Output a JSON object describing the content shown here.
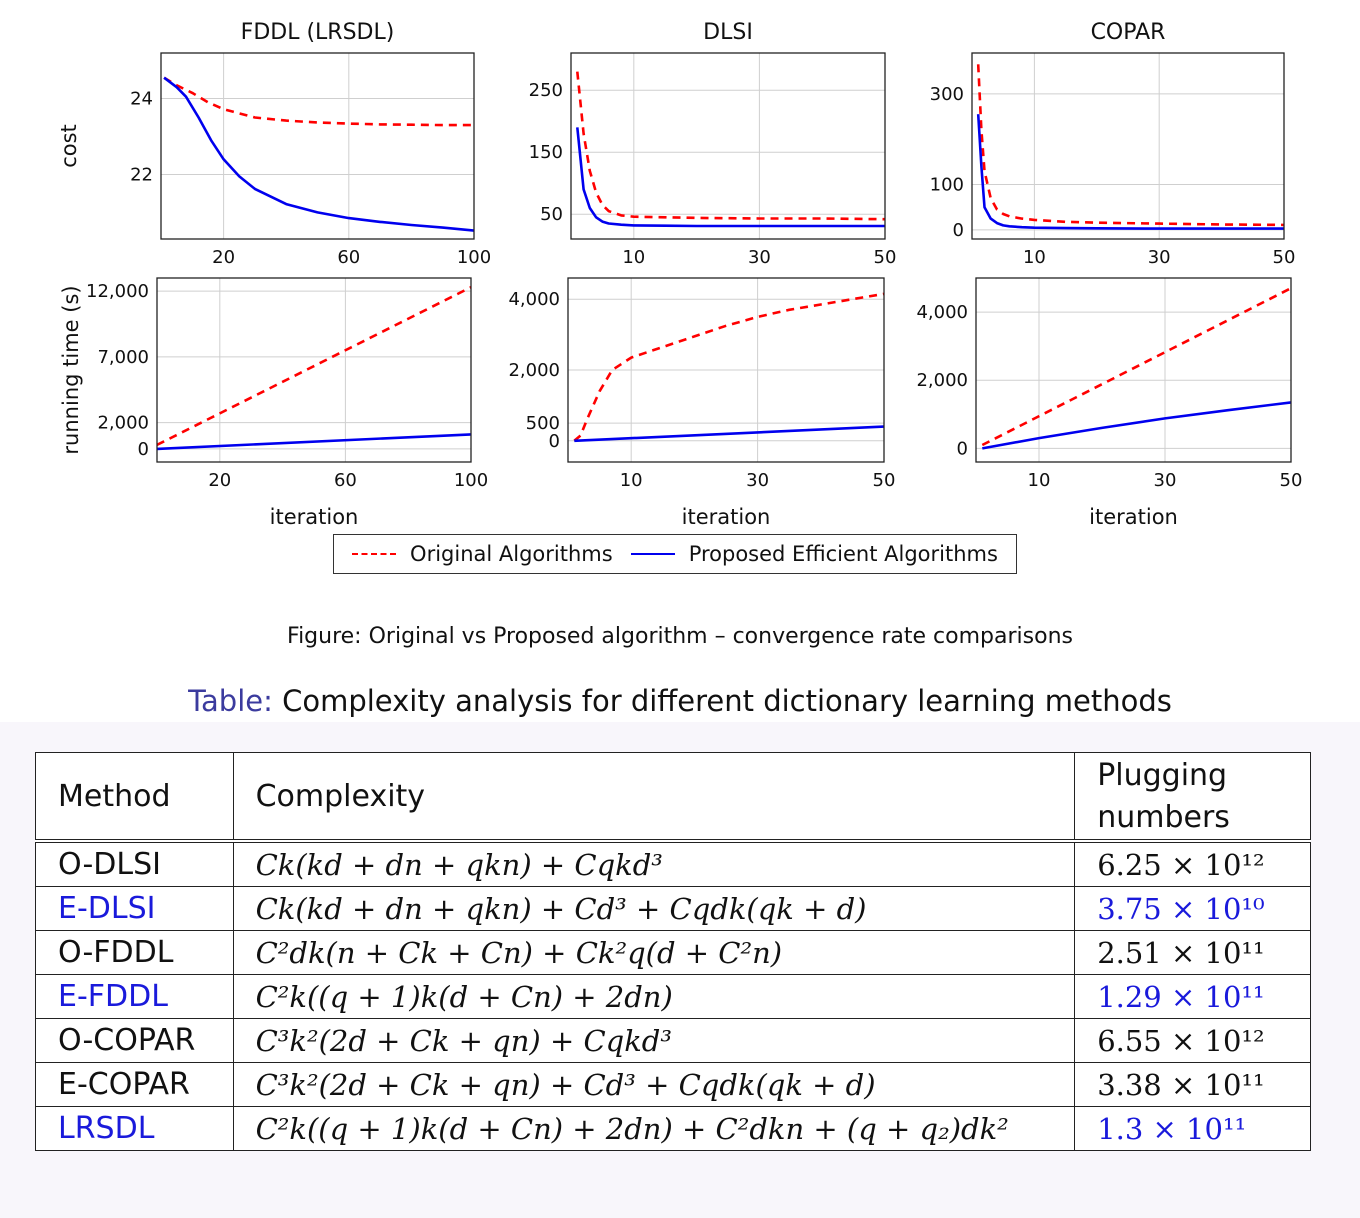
{
  "figure": {
    "legend": {
      "original": "Original Algorithms",
      "proposed": "Proposed Efficient Algorithms"
    },
    "caption": "Figure: Original vs Proposed algorithm – convergence rate comparisons",
    "colors": {
      "original": "#ff0000",
      "proposed": "#0000ee"
    }
  },
  "chart_data": [
    {
      "type": "line",
      "title": "FDDL (LRSDL)",
      "xlabel": "",
      "ylabel": "cost",
      "xlim": [
        0,
        100
      ],
      "ylim": [
        20.3,
        25.2
      ],
      "xticks": [
        20,
        60,
        100
      ],
      "xtick_labels": [
        "20",
        "60",
        "100"
      ],
      "yticks": [
        22,
        24
      ],
      "ytick_labels": [
        "22",
        "24"
      ],
      "grid": true,
      "series": [
        {
          "name": "Original Algorithms",
          "style": "dashed",
          "x": [
            1,
            5,
            10,
            15,
            20,
            30,
            40,
            50,
            60,
            70,
            80,
            90,
            100
          ],
          "y": [
            24.55,
            24.35,
            24.15,
            23.9,
            23.72,
            23.5,
            23.42,
            23.37,
            23.34,
            23.32,
            23.31,
            23.3,
            23.3
          ]
        },
        {
          "name": "Proposed Efficient Algorithms",
          "style": "solid",
          "x": [
            1,
            5,
            8,
            12,
            16,
            20,
            25,
            30,
            40,
            50,
            60,
            70,
            80,
            90,
            100
          ],
          "y": [
            24.55,
            24.3,
            24.05,
            23.5,
            22.9,
            22.4,
            21.95,
            21.62,
            21.22,
            21.0,
            20.85,
            20.75,
            20.67,
            20.6,
            20.52
          ]
        }
      ]
    },
    {
      "type": "line",
      "title": "DLSI",
      "xlabel": "",
      "ylabel": "",
      "xlim": [
        0,
        50
      ],
      "ylim": [
        10,
        310
      ],
      "xticks": [
        10,
        30,
        50
      ],
      "xtick_labels": [
        "10",
        "30",
        "50"
      ],
      "yticks": [
        50,
        150,
        250
      ],
      "ytick_labels": [
        "50",
        "150",
        "250"
      ],
      "grid": true,
      "series": [
        {
          "name": "Original Algorithms",
          "style": "dashed",
          "x": [
            1,
            2,
            3,
            4,
            5,
            6,
            8,
            10,
            15,
            20,
            30,
            40,
            50
          ],
          "y": [
            280,
            180,
            120,
            85,
            65,
            55,
            48,
            46,
            45,
            44,
            43,
            43,
            42
          ]
        },
        {
          "name": "Proposed Efficient Algorithms",
          "style": "solid",
          "x": [
            1,
            2,
            3,
            4,
            5,
            6,
            8,
            10,
            15,
            20,
            30,
            40,
            50
          ],
          "y": [
            190,
            90,
            60,
            45,
            38,
            35,
            33,
            32,
            31.5,
            31,
            31,
            31,
            31
          ]
        }
      ]
    },
    {
      "type": "line",
      "title": "COPAR",
      "xlabel": "",
      "ylabel": "",
      "xlim": [
        0,
        50
      ],
      "ylim": [
        -20,
        390
      ],
      "xticks": [
        10,
        30,
        50
      ],
      "xtick_labels": [
        "10",
        "30",
        "50"
      ],
      "yticks": [
        0,
        100,
        300
      ],
      "ytick_labels": [
        "0",
        "100",
        "300"
      ],
      "grid": true,
      "series": [
        {
          "name": "Original Algorithms",
          "style": "dashed",
          "x": [
            1,
            1.5,
            2,
            3,
            4,
            5,
            6,
            8,
            10,
            15,
            20,
            30,
            40,
            50
          ],
          "y": [
            365,
            220,
            130,
            70,
            45,
            35,
            30,
            25,
            22,
            18,
            16,
            14,
            12,
            11
          ]
        },
        {
          "name": "Proposed Efficient Algorithms",
          "style": "solid",
          "x": [
            1,
            1.5,
            2,
            3,
            4,
            5,
            6,
            8,
            10,
            15,
            20,
            30,
            40,
            50
          ],
          "y": [
            255,
            140,
            50,
            25,
            15,
            10,
            8,
            6,
            5,
            4,
            3.5,
            3,
            3,
            3
          ]
        }
      ]
    },
    {
      "type": "line",
      "title": "",
      "xlabel": "iteration",
      "ylabel": "running time (s)",
      "xlim": [
        0,
        100
      ],
      "ylim": [
        -1000,
        13000
      ],
      "xticks": [
        20,
        60,
        100
      ],
      "xtick_labels": [
        "20",
        "60",
        "100"
      ],
      "yticks": [
        0,
        2000,
        7000,
        12000
      ],
      "ytick_labels": [
        "0",
        "2,000",
        "7,000",
        "12,000"
      ],
      "grid": true,
      "series": [
        {
          "name": "Original Algorithms",
          "style": "dashed",
          "x": [
            0,
            100
          ],
          "y": [
            300,
            12300
          ]
        },
        {
          "name": "Proposed Efficient Algorithms",
          "style": "solid",
          "x": [
            0,
            100
          ],
          "y": [
            0,
            1100
          ]
        }
      ]
    },
    {
      "type": "line",
      "title": "",
      "xlabel": "iteration",
      "ylabel": "",
      "xlim": [
        0,
        50
      ],
      "ylim": [
        -600,
        4600
      ],
      "xticks": [
        10,
        30,
        50
      ],
      "xtick_labels": [
        "10",
        "30",
        "50"
      ],
      "yticks": [
        0,
        500,
        2000,
        4000
      ],
      "ytick_labels": [
        "0",
        "500",
        "2,000",
        "4,000"
      ],
      "grid": true,
      "series": [
        {
          "name": "Original Algorithms",
          "style": "dashed",
          "x": [
            1,
            2,
            3,
            5,
            7,
            10,
            15,
            20,
            25,
            30,
            35,
            40,
            45,
            50
          ],
          "y": [
            0,
            150,
            600,
            1400,
            2000,
            2350,
            2650,
            2950,
            3250,
            3500,
            3700,
            3850,
            4000,
            4150
          ]
        },
        {
          "name": "Proposed Efficient Algorithms",
          "style": "solid",
          "x": [
            1,
            50
          ],
          "y": [
            0,
            400
          ]
        }
      ]
    },
    {
      "type": "line",
      "title": "",
      "xlabel": "iteration",
      "ylabel": "",
      "xlim": [
        0,
        50
      ],
      "ylim": [
        -400,
        5000
      ],
      "xticks": [
        10,
        30,
        50
      ],
      "xtick_labels": [
        "10",
        "30",
        "50"
      ],
      "yticks": [
        0,
        2000,
        4000
      ],
      "ytick_labels": [
        "0",
        "2,000",
        "4,000"
      ],
      "grid": true,
      "series": [
        {
          "name": "Original Algorithms",
          "style": "dashed",
          "x": [
            1,
            50
          ],
          "y": [
            100,
            4700
          ]
        },
        {
          "name": "Proposed Efficient Algorithms",
          "style": "solid",
          "x": [
            1,
            10,
            20,
            30,
            40,
            50
          ],
          "y": [
            0,
            300,
            600,
            880,
            1120,
            1350
          ]
        }
      ]
    }
  ],
  "table": {
    "caption_prefix": "Table:",
    "caption_text": " Complexity analysis for different dictionary learning methods",
    "headers": [
      "Method",
      "Complexity",
      "Plugging numbers"
    ],
    "rows": [
      {
        "method": "O-DLSI",
        "complexity": "Ck(kd + dn + qkn) + Cqkd³",
        "value": "6.25 × 10¹²",
        "highlight": false
      },
      {
        "method": "E-DLSI",
        "complexity": "Ck(kd + dn + qkn) + Cd³ + Cqdk(qk + d)",
        "value": "3.75 × 10¹⁰",
        "highlight": true
      },
      {
        "method": "O-FDDL",
        "complexity": "C²dk(n + Ck + Cn) + Ck²q(d + C²n)",
        "value": "2.51 × 10¹¹",
        "highlight": false
      },
      {
        "method": "E-FDDL",
        "complexity": "C²k((q + 1)k(d + Cn) + 2dn)",
        "value": "1.29 × 10¹¹",
        "highlight": true
      },
      {
        "method": "O-COPAR",
        "complexity": "C³k²(2d + Ck + qn) + Cqkd³",
        "value": "6.55 × 10¹²",
        "highlight": false
      },
      {
        "method": "E-COPAR",
        "complexity": "C³k²(2d + Ck + qn) + Cd³ + Cqdk(qk + d)",
        "value": "3.38 × 10¹¹",
        "highlight": false
      },
      {
        "method": "LRSDL",
        "complexity": "C²k((q + 1)k(d + Cn) + 2dn) + C²dkn + (q + q₂)dk²",
        "value": "1.3 × 10¹¹",
        "highlight": true
      }
    ]
  }
}
